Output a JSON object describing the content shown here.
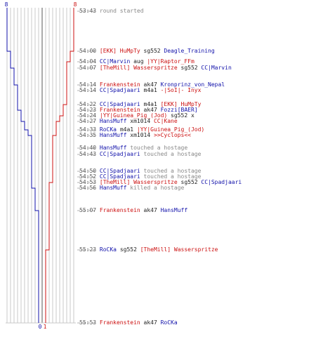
{
  "colors": {
    "team_red": "#cc1111",
    "team_blue": "#1111aa",
    "event_grey": "#888888",
    "gridline": "#c8c8c8",
    "center_line": "#555555"
  },
  "scores": {
    "blue_top": "8",
    "red_top": "8",
    "blue_bottom": "0",
    "red_bottom": "1"
  },
  "events": [
    {
      "time": "53:43",
      "parts": [
        {
          "text": "round started",
          "cls": "grey"
        }
      ]
    },
    {
      "time": "54:00",
      "parts": [
        {
          "text": "[EKK] HuMpTy",
          "cls": "red"
        },
        {
          "text": " sg552 ",
          "cls": "black"
        },
        {
          "text": "Deagle_Training",
          "cls": "blue"
        }
      ]
    },
    {
      "time": "54:04",
      "parts": [
        {
          "text": "CC|Marvin",
          "cls": "blue"
        },
        {
          "text": " aug ",
          "cls": "black"
        },
        {
          "text": "|YY|Raptor_FFm",
          "cls": "red"
        }
      ]
    },
    {
      "time": "54:07",
      "parts": [
        {
          "text": "[TheMill] Wasserspritze",
          "cls": "red"
        },
        {
          "text": " sg552 ",
          "cls": "black"
        },
        {
          "text": "CC|Marvin",
          "cls": "blue"
        }
      ]
    },
    {
      "time": "54:14",
      "parts": [
        {
          "text": "Frankenstein",
          "cls": "red"
        },
        {
          "text": " ak47 ",
          "cls": "black"
        },
        {
          "text": "Kronprinz_von_Nepal",
          "cls": "blue"
        }
      ]
    },
    {
      "time": "54:14",
      "parts": [
        {
          "text": "CC|Spadjaari",
          "cls": "blue"
        },
        {
          "text": " m4a1 ",
          "cls": "black"
        },
        {
          "text": "-|SoI|- Inyx",
          "cls": "red"
        }
      ]
    },
    {
      "time": "54:22",
      "parts": [
        {
          "text": "CC|Spadjaari",
          "cls": "blue"
        },
        {
          "text": " m4a1 ",
          "cls": "black"
        },
        {
          "text": "[EKK] HuMpTy",
          "cls": "red"
        }
      ]
    },
    {
      "time": "54:23",
      "parts": [
        {
          "text": "Frankenstein",
          "cls": "red"
        },
        {
          "text": " ak47 ",
          "cls": "black"
        },
        {
          "text": "Fozzi[BAER]",
          "cls": "blue"
        }
      ]
    },
    {
      "time": "54:24",
      "parts": [
        {
          "text": "|YY|Guinea_Pig_(Jod)",
          "cls": "red"
        },
        {
          "text": " sg552 x",
          "cls": "black"
        }
      ]
    },
    {
      "time": "54:27",
      "parts": [
        {
          "text": "HansMuff",
          "cls": "blue"
        },
        {
          "text": " xm1014 ",
          "cls": "black"
        },
        {
          "text": "CC|Kane",
          "cls": "red"
        }
      ]
    },
    {
      "time": "54:33",
      "parts": [
        {
          "text": "RoCKa",
          "cls": "blue"
        },
        {
          "text": " m4a1 ",
          "cls": "black"
        },
        {
          "text": "|YY|Guinea_Pig_(Jod)",
          "cls": "red"
        }
      ]
    },
    {
      "time": "54:35",
      "parts": [
        {
          "text": "HansMuff",
          "cls": "blue"
        },
        {
          "text": " xm1014 ",
          "cls": "black"
        },
        {
          "text": ">>Cyclops<<",
          "cls": "red"
        }
      ]
    },
    {
      "time": "54:40",
      "parts": [
        {
          "text": "HansMuff",
          "cls": "blue"
        },
        {
          "text": " touched a hostage",
          "cls": "grey"
        }
      ]
    },
    {
      "time": "54:43",
      "parts": [
        {
          "text": "CC|Spadjaari",
          "cls": "blue"
        },
        {
          "text": " touched a hostage",
          "cls": "grey"
        }
      ]
    },
    {
      "time": "54:50",
      "parts": [
        {
          "text": "CC|Spadjaari",
          "cls": "blue"
        },
        {
          "text": " touched a hostage",
          "cls": "grey"
        }
      ]
    },
    {
      "time": "54:52",
      "parts": [
        {
          "text": "CC|Spadjaari",
          "cls": "blue"
        },
        {
          "text": " touched a hostage",
          "cls": "grey"
        }
      ]
    },
    {
      "time": "54:53",
      "parts": [
        {
          "text": "[TheMill] Wasserspritze",
          "cls": "red"
        },
        {
          "text": " sg552 ",
          "cls": "black"
        },
        {
          "text": "CC|Spadjaari",
          "cls": "blue"
        }
      ]
    },
    {
      "time": "54:56",
      "parts": [
        {
          "text": "HansMuff",
          "cls": "blue"
        },
        {
          "text": " killed a hostage",
          "cls": "grey"
        }
      ]
    },
    {
      "time": "55:07",
      "parts": [
        {
          "text": "Frankenstein",
          "cls": "red"
        },
        {
          "text": " ak47 ",
          "cls": "black"
        },
        {
          "text": "HansMuff",
          "cls": "blue"
        }
      ]
    },
    {
      "time": "55:23",
      "parts": [
        {
          "text": "RoCKa",
          "cls": "blue"
        },
        {
          "text": " sg552 ",
          "cls": "black"
        },
        {
          "text": "[TheMill] Wasserspritze",
          "cls": "red"
        }
      ]
    },
    {
      "time": "55:53",
      "parts": [
        {
          "text": "Frankenstein",
          "cls": "red"
        },
        {
          "text": " ak47 ",
          "cls": "black"
        },
        {
          "text": "RoCKa",
          "cls": "blue"
        }
      ]
    }
  ]
}
